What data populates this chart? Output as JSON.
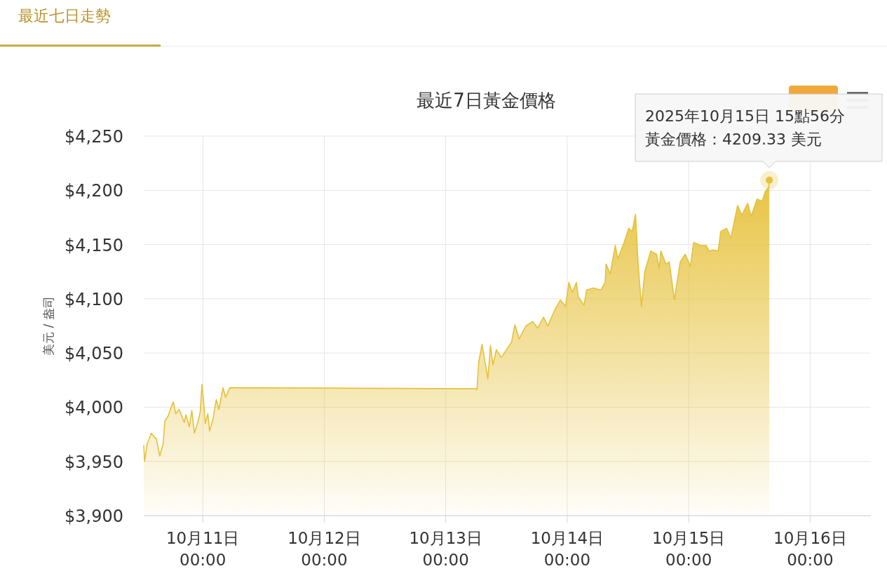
{
  "chart_data": {
    "type": "area",
    "title": "最近7日黃金價格",
    "subtitle": "最近七日走勢",
    "ylabel": "美元 / 盎司",
    "x": [
      "2025-10-10T12:20",
      "2025-10-10T12:30",
      "2025-10-10T13:00",
      "2025-10-10T13:50",
      "2025-10-10T14:30",
      "2025-10-10T14:50",
      "2025-10-10T15:30",
      "2025-10-10T16:10",
      "2025-10-10T16:30",
      "2025-10-10T17:10",
      "2025-10-10T17:40",
      "2025-10-10T18:10",
      "2025-10-10T18:40",
      "2025-10-10T19:20",
      "2025-10-10T20:20",
      "2025-10-10T20:40",
      "2025-10-10T21:20",
      "2025-10-10T21:50",
      "2025-10-10T22:20",
      "2025-10-10T23:00",
      "2025-10-10T23:30",
      "2025-10-10T23:50",
      "2025-10-11T00:10",
      "2025-10-11T00:30",
      "2025-10-11T01:00",
      "2025-10-11T01:20",
      "2025-10-11T02:00",
      "2025-10-11T02:40",
      "2025-10-11T03:10",
      "2025-10-11T04:00",
      "2025-10-11T04:30",
      "2025-10-11T05:20",
      "2025-10-13T06:00",
      "2025-10-13T06:10",
      "2025-10-13T06:30",
      "2025-10-13T07:10",
      "2025-10-13T08:20",
      "2025-10-13T08:50",
      "2025-10-13T09:20",
      "2025-10-13T10:00",
      "2025-10-13T11:00",
      "2025-10-13T13:00",
      "2025-10-13T13:40",
      "2025-10-13T14:30",
      "2025-10-13T15:50",
      "2025-10-13T17:10",
      "2025-10-13T18:10",
      "2025-10-13T19:20",
      "2025-10-13T20:10",
      "2025-10-13T21:40",
      "2025-10-13T22:40",
      "2025-10-13T23:40",
      "2025-10-14T00:20",
      "2025-10-14T01:00",
      "2025-10-14T01:50",
      "2025-10-14T02:10",
      "2025-10-14T03:20",
      "2025-10-14T03:50",
      "2025-10-14T05:10",
      "2025-10-14T06:40",
      "2025-10-14T07:30",
      "2025-10-14T07:40",
      "2025-10-14T08:30",
      "2025-10-14T09:30",
      "2025-10-14T10:00",
      "2025-10-14T11:10",
      "2025-10-14T12:10",
      "2025-10-14T12:50",
      "2025-10-14T13:30",
      "2025-10-14T14:00",
      "2025-10-14T14:40",
      "2025-10-14T15:20",
      "2025-10-14T16:30",
      "2025-10-14T17:40",
      "2025-10-14T18:10",
      "2025-10-14T18:30",
      "2025-10-14T19:30",
      "2025-10-14T20:10",
      "2025-10-14T21:10",
      "2025-10-14T22:20",
      "2025-10-14T23:20",
      "2025-10-15T00:20",
      "2025-10-15T01:00",
      "2025-10-15T02:30",
      "2025-10-15T03:30",
      "2025-10-15T04:00",
      "2025-10-15T04:50",
      "2025-10-15T05:50",
      "2025-10-15T06:20",
      "2025-10-15T07:30",
      "2025-10-15T08:20",
      "2025-10-15T09:40",
      "2025-10-15T10:30",
      "2025-10-15T11:40",
      "2025-10-15T12:20",
      "2025-10-15T13:30",
      "2025-10-15T14:30",
      "2025-10-15T15:10",
      "2025-10-15T15:50",
      "2025-10-15T15:56"
    ],
    "series": [
      {
        "color": "#e6c13a",
        "values": [
          3965,
          3950,
          3966,
          3976,
          3972,
          3971,
          3955,
          3966,
          3987,
          3992,
          3999,
          4005,
          3994,
          3998,
          3986,
          3993,
          3982,
          3997,
          3976,
          3986,
          3996,
          4021,
          4005,
          3985,
          3994,
          3978,
          3989,
          4007,
          3998,
          4018,
          4009,
          4018,
          4017,
          4016,
          4041,
          4058,
          4026,
          4057,
          4039,
          4053,
          4046,
          4060,
          4076,
          4063,
          4075,
          4079,
          4073,
          4083,
          4075,
          4091,
          4099,
          4093,
          4115,
          4106,
          4115,
          4102,
          4094,
          4108,
          4110,
          4108,
          4115,
          4132,
          4123,
          4149,
          4137,
          4151,
          4165,
          4162,
          4178,
          4133,
          4093,
          4125,
          4144,
          4141,
          4128,
          4144,
          4132,
          4134,
          4099,
          4134,
          4141,
          4130,
          4152,
          4149,
          4149,
          4144,
          4145,
          4144,
          4162,
          4165,
          4156,
          4186,
          4177,
          4188,
          4176,
          4192,
          4190,
          4199,
          4203,
          4209.33
        ]
      }
    ],
    "xlim": [
      "2025-10-10T12:20",
      "2025-10-16T12:00"
    ],
    "xticks": [
      {
        "value": "2025-10-11T00:00",
        "label": "10月11日\n00:00"
      },
      {
        "value": "2025-10-12T00:00",
        "label": "10月12日\n00:00"
      },
      {
        "value": "2025-10-13T00:00",
        "label": "10月13日\n00:00"
      },
      {
        "value": "2025-10-14T00:00",
        "label": "10月14日\n00:00"
      },
      {
        "value": "2025-10-15T00:00",
        "label": "10月15日\n00:00"
      },
      {
        "value": "2025-10-16T00:00",
        "label": "10月16日\n00:00"
      }
    ],
    "ylim": [
      3900,
      4250
    ],
    "yticks": [
      {
        "value": 3900,
        "label": "$3,900"
      },
      {
        "value": 3950,
        "label": "$3,950"
      },
      {
        "value": 4000,
        "label": "$4,000"
      },
      {
        "value": 4050,
        "label": "$4,050"
      },
      {
        "value": 4100,
        "label": "$4,100"
      },
      {
        "value": 4150,
        "label": "$4,150"
      },
      {
        "value": 4200,
        "label": "$4,200"
      },
      {
        "value": 4250,
        "label": "$4,250"
      }
    ],
    "grid": true,
    "annotations": [
      "2025年10月15日 15點56分",
      "黃金價格：4209.33 美元"
    ]
  }
}
